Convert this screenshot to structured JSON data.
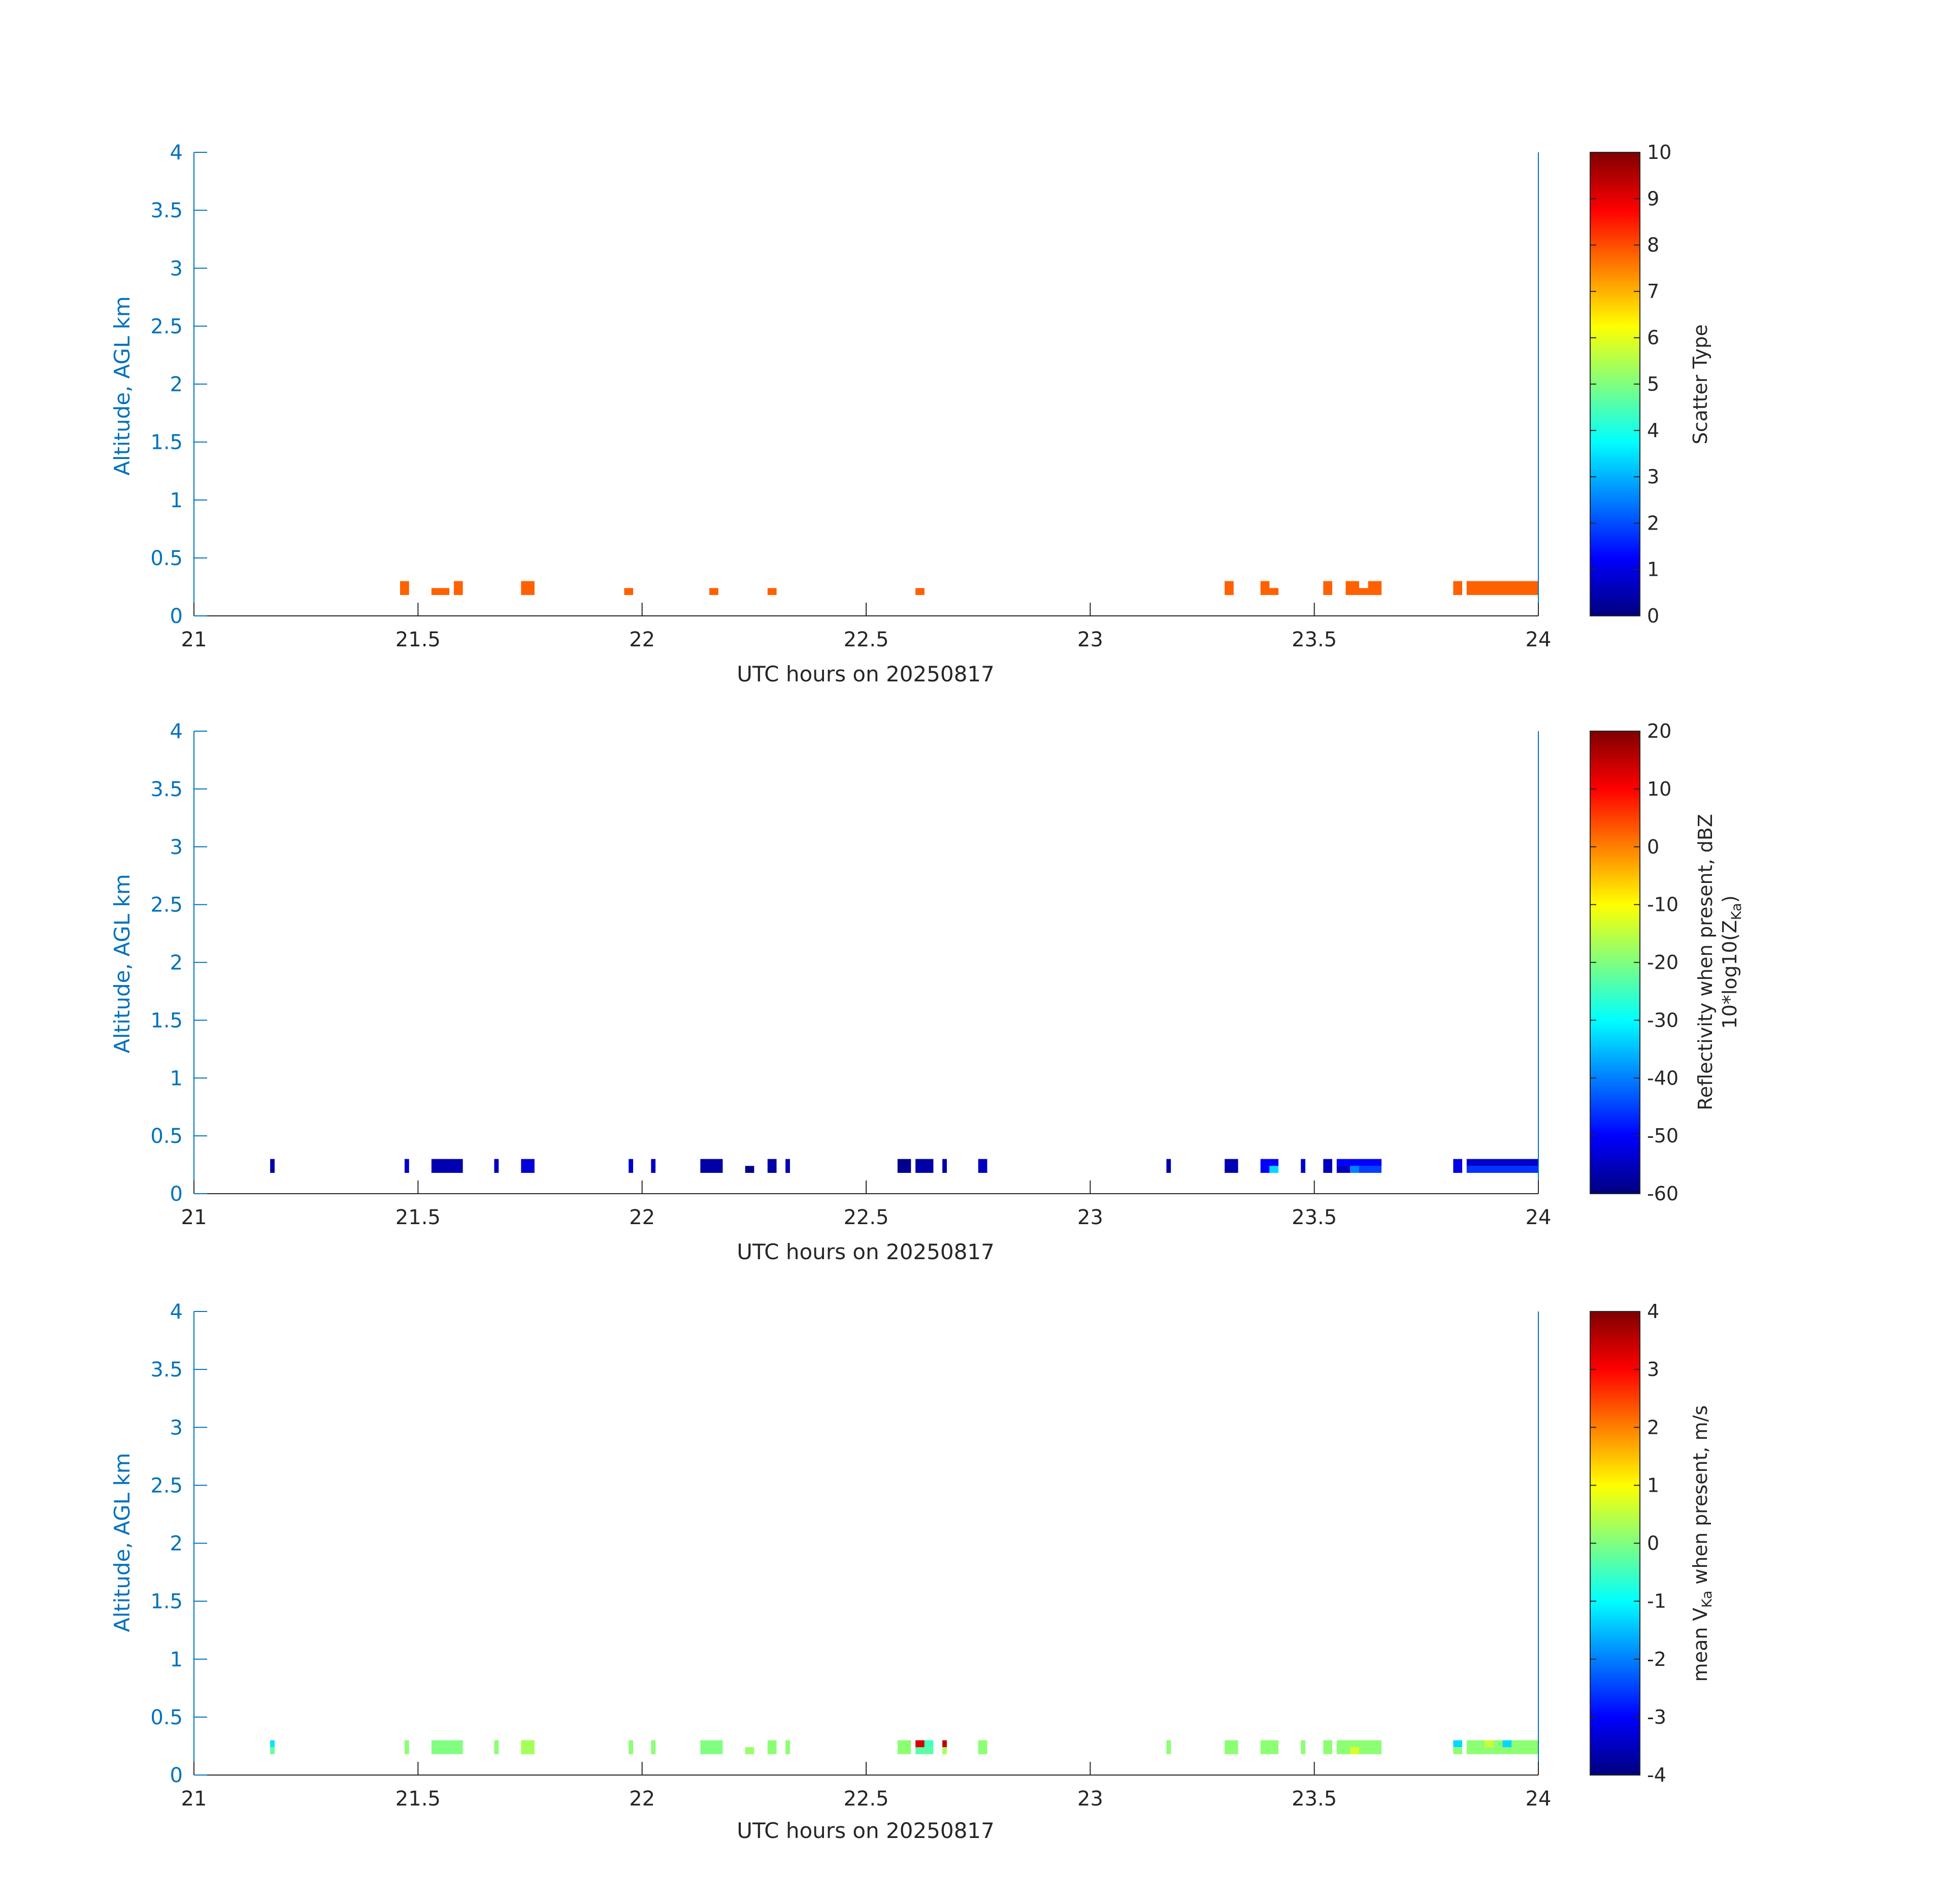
{
  "chart_data": [
    {
      "type": "heatmap",
      "xlabel": "UTC hours on 20250817",
      "ylabel": "Altitude, AGL km",
      "xlim": [
        21,
        24
      ],
      "ylim": [
        0,
        4
      ],
      "xticks": [
        21,
        21.5,
        22,
        22.5,
        23,
        23.5,
        24
      ],
      "yticks": [
        0,
        0.5,
        1,
        1.5,
        2,
        2.5,
        3,
        3.5,
        4
      ],
      "colorbar": {
        "label": "Scatter Type",
        "range": [
          0,
          10
        ],
        "ticks": [
          0,
          1,
          2,
          3,
          4,
          5,
          6,
          7,
          8,
          9,
          10
        ],
        "colormap": "jet"
      },
      "cells": [
        {
          "x": [
            21.46,
            21.48
          ],
          "y": [
            0.18,
            0.3
          ],
          "value": 7.8
        },
        {
          "x": [
            21.53,
            21.57
          ],
          "y": [
            0.18,
            0.24
          ],
          "value": 7.8
        },
        {
          "x": [
            21.58,
            21.6
          ],
          "y": [
            0.18,
            0.3
          ],
          "value": 7.8
        },
        {
          "x": [
            21.73,
            21.76
          ],
          "y": [
            0.18,
            0.3
          ],
          "value": 7.8
        },
        {
          "x": [
            21.96,
            21.98
          ],
          "y": [
            0.18,
            0.24
          ],
          "value": 7.8
        },
        {
          "x": [
            22.15,
            22.17
          ],
          "y": [
            0.18,
            0.24
          ],
          "value": 7.8
        },
        {
          "x": [
            22.28,
            22.3
          ],
          "y": [
            0.18,
            0.24
          ],
          "value": 7.8
        },
        {
          "x": [
            22.61,
            22.63
          ],
          "y": [
            0.18,
            0.24
          ],
          "value": 7.8
        },
        {
          "x": [
            23.3,
            23.32
          ],
          "y": [
            0.18,
            0.3
          ],
          "value": 7.8
        },
        {
          "x": [
            23.38,
            23.4
          ],
          "y": [
            0.18,
            0.3
          ],
          "value": 7.8
        },
        {
          "x": [
            23.4,
            23.42
          ],
          "y": [
            0.18,
            0.24
          ],
          "value": 7.8
        },
        {
          "x": [
            23.52,
            23.54
          ],
          "y": [
            0.18,
            0.3
          ],
          "value": 7.8
        },
        {
          "x": [
            23.57,
            23.6
          ],
          "y": [
            0.18,
            0.3
          ],
          "value": 7.8
        },
        {
          "x": [
            23.6,
            23.62
          ],
          "y": [
            0.18,
            0.24
          ],
          "value": 7.8
        },
        {
          "x": [
            23.62,
            23.65
          ],
          "y": [
            0.18,
            0.3
          ],
          "value": 7.8
        },
        {
          "x": [
            23.81,
            23.83
          ],
          "y": [
            0.18,
            0.3
          ],
          "value": 7.8
        },
        {
          "x": [
            23.84,
            24.0
          ],
          "y": [
            0.18,
            0.3
          ],
          "value": 7.8
        }
      ]
    },
    {
      "type": "heatmap",
      "xlabel": "UTC hours on 20250817",
      "ylabel": "Altitude, AGL km",
      "xlim": [
        21,
        24
      ],
      "ylim": [
        0,
        4
      ],
      "xticks": [
        21,
        21.5,
        22,
        22.5,
        23,
        23.5,
        24
      ],
      "yticks": [
        0,
        0.5,
        1,
        1.5,
        2,
        2.5,
        3,
        3.5,
        4
      ],
      "colorbar": {
        "label_line1": "Reflectivity when present, dBZ",
        "label_line2_prefix": "10*log10(Z",
        "label_line2_sub": "Ka",
        "label_line2_suffix": ")",
        "range": [
          -60,
          20
        ],
        "ticks": [
          -60,
          -50,
          -40,
          -30,
          -20,
          -10,
          0,
          10,
          20
        ],
        "colormap": "jet"
      },
      "cells": [
        {
          "x": [
            21.17,
            21.18
          ],
          "y": [
            0.18,
            0.3
          ],
          "value": -57
        },
        {
          "x": [
            21.47,
            21.48
          ],
          "y": [
            0.18,
            0.3
          ],
          "value": -55
        },
        {
          "x": [
            21.53,
            21.6
          ],
          "y": [
            0.18,
            0.3
          ],
          "value": -56
        },
        {
          "x": [
            21.67,
            21.68
          ],
          "y": [
            0.18,
            0.3
          ],
          "value": -55
        },
        {
          "x": [
            21.73,
            21.76
          ],
          "y": [
            0.18,
            0.3
          ],
          "value": -53
        },
        {
          "x": [
            21.97,
            21.98
          ],
          "y": [
            0.18,
            0.3
          ],
          "value": -54
        },
        {
          "x": [
            22.02,
            22.03
          ],
          "y": [
            0.18,
            0.3
          ],
          "value": -55
        },
        {
          "x": [
            22.13,
            22.18
          ],
          "y": [
            0.18,
            0.3
          ],
          "value": -57
        },
        {
          "x": [
            22.23,
            22.25
          ],
          "y": [
            0.18,
            0.24
          ],
          "value": -59
        },
        {
          "x": [
            22.28,
            22.3
          ],
          "y": [
            0.18,
            0.3
          ],
          "value": -57
        },
        {
          "x": [
            22.32,
            22.33
          ],
          "y": [
            0.18,
            0.3
          ],
          "value": -56
        },
        {
          "x": [
            22.57,
            22.6
          ],
          "y": [
            0.18,
            0.3
          ],
          "value": -59
        },
        {
          "x": [
            22.61,
            22.65
          ],
          "y": [
            0.18,
            0.3
          ],
          "value": -57
        },
        {
          "x": [
            22.67,
            22.68
          ],
          "y": [
            0.18,
            0.3
          ],
          "value": -57
        },
        {
          "x": [
            22.75,
            22.77
          ],
          "y": [
            0.18,
            0.3
          ],
          "value": -55
        },
        {
          "x": [
            23.17,
            23.18
          ],
          "y": [
            0.18,
            0.3
          ],
          "value": -57
        },
        {
          "x": [
            23.3,
            23.33
          ],
          "y": [
            0.18,
            0.3
          ],
          "value": -56
        },
        {
          "x": [
            23.38,
            23.42
          ],
          "y": [
            0.24,
            0.3
          ],
          "value": -50
        },
        {
          "x": [
            23.38,
            23.4
          ],
          "y": [
            0.18,
            0.24
          ],
          "value": -50
        },
        {
          "x": [
            23.4,
            23.42
          ],
          "y": [
            0.18,
            0.24
          ],
          "value": -33
        },
        {
          "x": [
            23.47,
            23.48
          ],
          "y": [
            0.18,
            0.3
          ],
          "value": -54
        },
        {
          "x": [
            23.52,
            23.54
          ],
          "y": [
            0.18,
            0.3
          ],
          "value": -55
        },
        {
          "x": [
            23.55,
            23.65
          ],
          "y": [
            0.24,
            0.3
          ],
          "value": -50
        },
        {
          "x": [
            23.55,
            23.58
          ],
          "y": [
            0.18,
            0.24
          ],
          "value": -55
        },
        {
          "x": [
            23.58,
            23.6
          ],
          "y": [
            0.18,
            0.24
          ],
          "value": -40
        },
        {
          "x": [
            23.6,
            23.65
          ],
          "y": [
            0.18,
            0.24
          ],
          "value": -45
        },
        {
          "x": [
            23.81,
            23.83
          ],
          "y": [
            0.18,
            0.3
          ],
          "value": -52
        },
        {
          "x": [
            23.84,
            24.0
          ],
          "y": [
            0.24,
            0.3
          ],
          "value": -54
        },
        {
          "x": [
            23.84,
            24.0
          ],
          "y": [
            0.18,
            0.24
          ],
          "value": -46
        }
      ]
    },
    {
      "type": "heatmap",
      "xlabel": "UTC hours on 20250817",
      "ylabel": "Altitude, AGL km",
      "xlim": [
        21,
        24
      ],
      "ylim": [
        0,
        4
      ],
      "xticks": [
        21,
        21.5,
        22,
        22.5,
        23,
        23.5,
        24
      ],
      "yticks": [
        0,
        0.5,
        1,
        1.5,
        2,
        2.5,
        3,
        3.5,
        4
      ],
      "colorbar": {
        "label_prefix": "mean V",
        "label_sub": "Ka",
        "label_suffix": " when present, m/s",
        "range": [
          -4,
          4
        ],
        "ticks": [
          -4,
          -3,
          -2,
          -1,
          0,
          1,
          2,
          3,
          4
        ],
        "colormap": "jet"
      },
      "cells": [
        {
          "x": [
            21.17,
            21.18
          ],
          "y": [
            0.24,
            0.3
          ],
          "value": -1.2
        },
        {
          "x": [
            21.17,
            21.18
          ],
          "y": [
            0.18,
            0.24
          ],
          "value": -0.2
        },
        {
          "x": [
            21.47,
            21.48
          ],
          "y": [
            0.18,
            0.3
          ],
          "value": 0.1
        },
        {
          "x": [
            21.53,
            21.6
          ],
          "y": [
            0.18,
            0.3
          ],
          "value": 0.0
        },
        {
          "x": [
            21.67,
            21.68
          ],
          "y": [
            0.18,
            0.3
          ],
          "value": 0.1
        },
        {
          "x": [
            21.73,
            21.76
          ],
          "y": [
            0.18,
            0.3
          ],
          "value": 0.3
        },
        {
          "x": [
            21.97,
            21.98
          ],
          "y": [
            0.18,
            0.3
          ],
          "value": 0.1
        },
        {
          "x": [
            22.02,
            22.03
          ],
          "y": [
            0.18,
            0.3
          ],
          "value": 0.1
        },
        {
          "x": [
            22.13,
            22.18
          ],
          "y": [
            0.18,
            0.3
          ],
          "value": 0.0
        },
        {
          "x": [
            22.23,
            22.25
          ],
          "y": [
            0.18,
            0.24
          ],
          "value": 0.2
        },
        {
          "x": [
            22.28,
            22.3
          ],
          "y": [
            0.18,
            0.3
          ],
          "value": 0.1
        },
        {
          "x": [
            22.32,
            22.33
          ],
          "y": [
            0.18,
            0.3
          ],
          "value": 0.1
        },
        {
          "x": [
            22.57,
            22.6
          ],
          "y": [
            0.18,
            0.3
          ],
          "value": 0.1
        },
        {
          "x": [
            22.61,
            22.65
          ],
          "y": [
            0.18,
            0.24
          ],
          "value": -0.3
        },
        {
          "x": [
            22.61,
            22.63
          ],
          "y": [
            0.24,
            0.3
          ],
          "value": 3.3
        },
        {
          "x": [
            22.63,
            22.65
          ],
          "y": [
            0.24,
            0.3
          ],
          "value": -0.5
        },
        {
          "x": [
            22.67,
            22.68
          ],
          "y": [
            0.24,
            0.3
          ],
          "value": 3.5
        },
        {
          "x": [
            22.67,
            22.68
          ],
          "y": [
            0.18,
            0.24
          ],
          "value": 0.3
        },
        {
          "x": [
            22.75,
            22.77
          ],
          "y": [
            0.18,
            0.3
          ],
          "value": 0.1
        },
        {
          "x": [
            23.17,
            23.18
          ],
          "y": [
            0.18,
            0.3
          ],
          "value": 0.1
        },
        {
          "x": [
            23.3,
            23.33
          ],
          "y": [
            0.18,
            0.3
          ],
          "value": 0.1
        },
        {
          "x": [
            23.38,
            23.42
          ],
          "y": [
            0.18,
            0.3
          ],
          "value": 0.1
        },
        {
          "x": [
            23.47,
            23.48
          ],
          "y": [
            0.18,
            0.3
          ],
          "value": 0.1
        },
        {
          "x": [
            23.52,
            23.54
          ],
          "y": [
            0.18,
            0.3
          ],
          "value": 0.1
        },
        {
          "x": [
            23.55,
            23.65
          ],
          "y": [
            0.18,
            0.3
          ],
          "value": 0.1
        },
        {
          "x": [
            23.58,
            23.6
          ],
          "y": [
            0.18,
            0.24
          ],
          "value": 0.7
        },
        {
          "x": [
            23.81,
            23.83
          ],
          "y": [
            0.24,
            0.3
          ],
          "value": -1.3
        },
        {
          "x": [
            23.81,
            23.83
          ],
          "y": [
            0.18,
            0.24
          ],
          "value": 0.1
        },
        {
          "x": [
            23.84,
            24.0
          ],
          "y": [
            0.18,
            0.3
          ],
          "value": 0.1
        },
        {
          "x": [
            23.88,
            23.9
          ],
          "y": [
            0.24,
            0.3
          ],
          "value": 0.6
        },
        {
          "x": [
            23.92,
            23.94
          ],
          "y": [
            0.24,
            0.3
          ],
          "value": -1.3
        }
      ]
    }
  ]
}
